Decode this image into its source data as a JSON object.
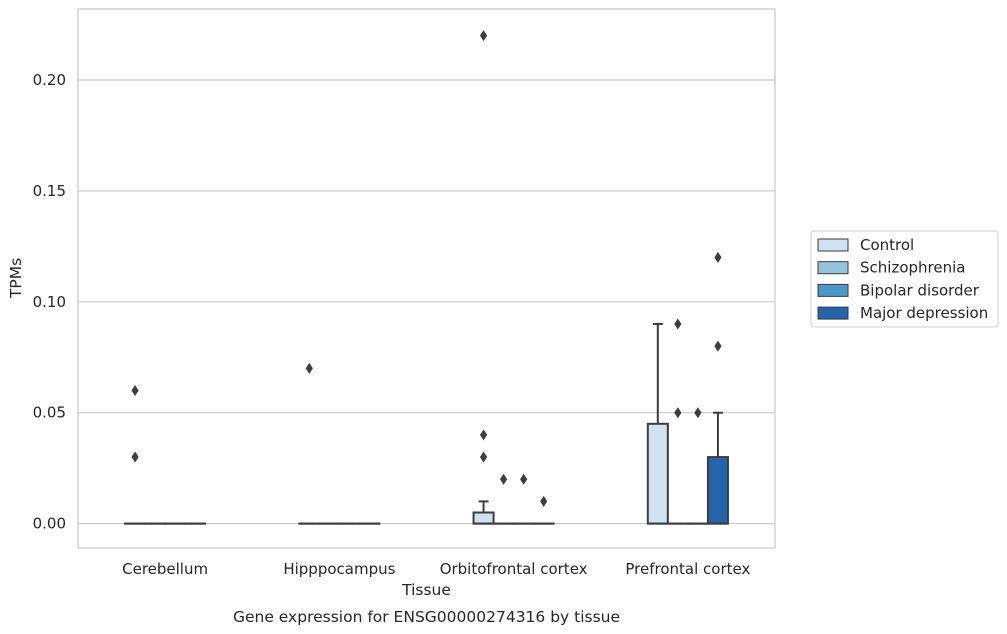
{
  "chart_data": {
    "type": "box",
    "title": "",
    "caption": "Gene expression for ENSG00000274316 by tissue",
    "xlabel": "Tissue",
    "ylabel": "TPMs",
    "ylim": [
      -0.011,
      0.232
    ],
    "yticks": [
      0.0,
      0.05,
      0.1,
      0.15,
      0.2
    ],
    "ytick_labels": [
      "0.00",
      "0.05",
      "0.10",
      "0.15",
      "0.20"
    ],
    "grid": true,
    "legend_position": "right",
    "categories": [
      "Cerebellum",
      "Hipppocampus",
      "Orbitofrontal cortex",
      "Prefrontal cortex"
    ],
    "series": [
      {
        "name": "Control",
        "color": "#d0e1f2",
        "boxes": [
          {
            "q1": 0,
            "median": 0,
            "q3": 0,
            "whisker_low": 0,
            "whisker_high": 0,
            "outliers": [
              0.03,
              0.06
            ]
          },
          {
            "q1": 0,
            "median": 0,
            "q3": 0,
            "whisker_low": 0,
            "whisker_high": 0,
            "outliers": [
              0.07
            ]
          },
          {
            "q1": 0,
            "median": 0,
            "q3": 0.005,
            "whisker_low": 0,
            "whisker_high": 0.01,
            "outliers": [
              0.03,
              0.04,
              0.22
            ]
          },
          {
            "q1": 0,
            "median": 0,
            "q3": 0.045,
            "whisker_low": 0,
            "whisker_high": 0.09,
            "outliers": []
          }
        ]
      },
      {
        "name": "Schizophrenia",
        "color": "#94c4df",
        "boxes": [
          {
            "q1": 0,
            "median": 0,
            "q3": 0,
            "whisker_low": 0,
            "whisker_high": 0,
            "outliers": []
          },
          {
            "q1": 0,
            "median": 0,
            "q3": 0,
            "whisker_low": 0,
            "whisker_high": 0,
            "outliers": []
          },
          {
            "q1": 0,
            "median": 0,
            "q3": 0,
            "whisker_low": 0,
            "whisker_high": 0,
            "outliers": [
              0.02
            ]
          },
          {
            "q1": 0,
            "median": 0,
            "q3": 0,
            "whisker_low": 0,
            "whisker_high": 0,
            "outliers": [
              0.05,
              0.09
            ]
          }
        ]
      },
      {
        "name": "Bipolar disorder",
        "color": "#4a98c9",
        "boxes": [
          {
            "q1": 0,
            "median": 0,
            "q3": 0,
            "whisker_low": 0,
            "whisker_high": 0,
            "outliers": []
          },
          {
            "q1": 0,
            "median": 0,
            "q3": 0,
            "whisker_low": 0,
            "whisker_high": 0,
            "outliers": []
          },
          {
            "q1": 0,
            "median": 0,
            "q3": 0,
            "whisker_low": 0,
            "whisker_high": 0,
            "outliers": [
              0.02
            ]
          },
          {
            "q1": 0,
            "median": 0,
            "q3": 0,
            "whisker_low": 0,
            "whisker_high": 0,
            "outliers": [
              0.05
            ]
          }
        ]
      },
      {
        "name": "Major depression",
        "color": "#2464a8",
        "boxes": [
          {
            "q1": 0,
            "median": 0,
            "q3": 0,
            "whisker_low": 0,
            "whisker_high": 0,
            "outliers": []
          },
          {
            "q1": 0,
            "median": 0,
            "q3": 0,
            "whisker_low": 0,
            "whisker_high": 0,
            "outliers": []
          },
          {
            "q1": 0,
            "median": 0,
            "q3": 0,
            "whisker_low": 0,
            "whisker_high": 0,
            "outliers": [
              0.01
            ]
          },
          {
            "q1": 0,
            "median": 0,
            "q3": 0.03,
            "whisker_low": 0,
            "whisker_high": 0.05,
            "outliers": [
              0.08,
              0.12
            ]
          }
        ]
      }
    ]
  }
}
